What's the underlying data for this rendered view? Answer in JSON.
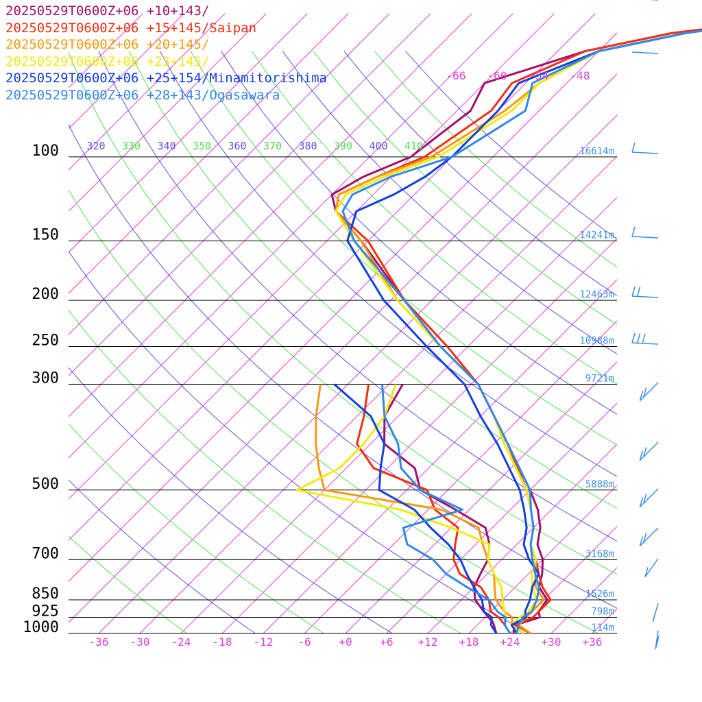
{
  "chart_data": {
    "type": "line",
    "title": "",
    "xlabel": "",
    "ylabel": "",
    "xlim": [
      -40,
      40
    ],
    "ylim": [
      1000,
      100
    ],
    "y_scale": "log",
    "pressure_levels": [
      {
        "p": 100,
        "label": "100",
        "height": "16614m"
      },
      {
        "p": 150,
        "label": "150",
        "height": "14241m"
      },
      {
        "p": 200,
        "label": "200",
        "height": "12463m"
      },
      {
        "p": 250,
        "label": "250",
        "height": "10988m"
      },
      {
        "p": 300,
        "label": "300",
        "height": "9721m"
      },
      {
        "p": 500,
        "label": "500",
        "height": "5888m"
      },
      {
        "p": 700,
        "label": "700",
        "height": "3168m"
      },
      {
        "p": 850,
        "label": "850",
        "height": "1526m"
      },
      {
        "p": 925,
        "label": "925",
        "height": "798m"
      },
      {
        "p": 1000,
        "label": "1000",
        "height": "114m"
      }
    ],
    "x_ticks": [
      "-36",
      "-30",
      "-24",
      "-18",
      "-12",
      "-6",
      "+0",
      "+6",
      "+12",
      "+18",
      "+24",
      "+30",
      "+36"
    ],
    "upper_temp_labels": [
      "-66",
      "-60",
      "-54",
      "-48"
    ],
    "theta_labels": [
      "320",
      "330",
      "340",
      "350",
      "360",
      "370",
      "380",
      "390",
      "400",
      "410"
    ],
    "series": [
      {
        "name": "20250529T0600Z+06 +10+143/",
        "color": "#a0106a",
        "temp": [
          [
            1000,
            24.5
          ],
          [
            960,
            23.5
          ],
          [
            925,
            26
          ],
          [
            900,
            25
          ],
          [
            850,
            24.5
          ],
          [
            800,
            21.5
          ],
          [
            750,
            20
          ],
          [
            700,
            18
          ],
          [
            650,
            15
          ],
          [
            600,
            13
          ],
          [
            550,
            10
          ],
          [
            500,
            6
          ],
          [
            400,
            -4
          ],
          [
            350,
            -10
          ],
          [
            300,
            -17
          ],
          [
            250,
            -28
          ],
          [
            200,
            -40
          ],
          [
            150,
            -55
          ],
          [
            130,
            -63
          ],
          [
            120,
            -66
          ],
          [
            110,
            -64
          ],
          [
            100,
            -60
          ],
          [
            80,
            -58
          ],
          [
            70,
            -60
          ],
          [
            60,
            -50
          ],
          [
            55,
            -40
          ],
          [
            52,
            -28
          ]
        ],
        "dew": [
          [
            1000,
            22
          ],
          [
            950,
            20
          ],
          [
            900,
            17
          ],
          [
            850,
            14
          ],
          [
            800,
            12
          ],
          [
            750,
            11
          ],
          [
            700,
            10
          ],
          [
            650,
            8
          ],
          [
            600,
            5
          ],
          [
            550,
            -2
          ],
          [
            500,
            -10
          ],
          [
            450,
            -14
          ],
          [
            400,
            -22
          ],
          [
            350,
            -26
          ],
          [
            300,
            -28
          ]
        ]
      },
      {
        "name": "20250529T0600Z+06 +15+145/Saipan",
        "color": "#f03010",
        "temp": [
          [
            1000,
            27
          ],
          [
            960,
            23.5
          ],
          [
            925,
            25
          ],
          [
            900,
            25
          ],
          [
            850,
            25
          ],
          [
            800,
            22
          ],
          [
            750,
            19.5
          ],
          [
            700,
            17
          ],
          [
            650,
            14
          ],
          [
            600,
            12
          ],
          [
            550,
            9
          ],
          [
            500,
            5.5
          ],
          [
            400,
            -4
          ],
          [
            350,
            -10
          ],
          [
            300,
            -17
          ],
          [
            250,
            -27
          ],
          [
            200,
            -40
          ],
          [
            150,
            -54
          ],
          [
            130,
            -63
          ],
          [
            120,
            -65
          ],
          [
            110,
            -62
          ],
          [
            100,
            -58
          ],
          [
            80,
            -55
          ],
          [
            70,
            -56
          ],
          [
            60,
            -50
          ],
          [
            55,
            -40
          ],
          [
            52,
            -28
          ]
        ],
        "dew": [
          [
            1000,
            24
          ],
          [
            960,
            22
          ],
          [
            925,
            20
          ],
          [
            900,
            18
          ],
          [
            850,
            16
          ],
          [
            800,
            13
          ],
          [
            750,
            8
          ],
          [
            700,
            5
          ],
          [
            650,
            3
          ],
          [
            600,
            1
          ],
          [
            550,
            -5
          ],
          [
            500,
            -9
          ],
          [
            450,
            -20
          ],
          [
            400,
            -26
          ],
          [
            350,
            -29
          ],
          [
            300,
            -33
          ]
        ]
      },
      {
        "name": "20250529T0600Z+06 +20+145/",
        "color": "#f59a10",
        "temp": [
          [
            1000,
            27
          ],
          [
            960,
            24
          ],
          [
            925,
            24
          ],
          [
            900,
            24
          ],
          [
            850,
            24
          ],
          [
            800,
            21
          ],
          [
            750,
            19
          ],
          [
            700,
            17
          ],
          [
            650,
            14
          ],
          [
            600,
            12
          ],
          [
            550,
            9
          ],
          [
            500,
            5.5
          ],
          [
            400,
            -4.5
          ],
          [
            350,
            -10
          ],
          [
            300,
            -17
          ],
          [
            250,
            -28
          ],
          [
            200,
            -41
          ],
          [
            150,
            -55
          ],
          [
            130,
            -63
          ],
          [
            120,
            -65
          ],
          [
            110,
            -62
          ],
          [
            100,
            -57
          ],
          [
            80,
            -53
          ],
          [
            70,
            -52
          ],
          [
            60,
            -48
          ],
          [
            55,
            -38
          ],
          [
            52,
            -28
          ]
        ],
        "dew": [
          [
            1000,
            26
          ],
          [
            960,
            23
          ],
          [
            925,
            22
          ],
          [
            900,
            20
          ],
          [
            850,
            17
          ],
          [
            800,
            15
          ],
          [
            750,
            13
          ],
          [
            700,
            10
          ],
          [
            650,
            7
          ],
          [
            600,
            4
          ],
          [
            550,
            -4
          ],
          [
            500,
            -24
          ],
          [
            450,
            -28
          ],
          [
            400,
            -32
          ],
          [
            350,
            -36
          ],
          [
            300,
            -40
          ]
        ]
      },
      {
        "name": "20250529T0600Z+06 +23+145/",
        "color": "#f2ea10",
        "temp": [
          [
            1000,
            26
          ],
          [
            960,
            23
          ],
          [
            925,
            23
          ],
          [
            900,
            23.5
          ],
          [
            850,
            23
          ],
          [
            800,
            20.5
          ],
          [
            750,
            18.5
          ],
          [
            700,
            17
          ],
          [
            650,
            14
          ],
          [
            600,
            12
          ],
          [
            550,
            9
          ],
          [
            500,
            5.5
          ],
          [
            400,
            -4.5
          ],
          [
            350,
            -10
          ],
          [
            300,
            -17
          ],
          [
            250,
            -28
          ],
          [
            200,
            -41
          ],
          [
            150,
            -56
          ],
          [
            130,
            -63
          ],
          [
            120,
            -64
          ],
          [
            110,
            -61
          ],
          [
            100,
            -56
          ],
          [
            80,
            -52
          ],
          [
            70,
            -52
          ],
          [
            60,
            -48
          ],
          [
            55,
            -38
          ],
          [
            52,
            -28
          ]
        ],
        "dew": [
          [
            1000,
            24
          ],
          [
            960,
            22
          ],
          [
            925,
            21
          ],
          [
            900,
            20
          ],
          [
            850,
            18
          ],
          [
            800,
            16
          ],
          [
            750,
            13
          ],
          [
            700,
            10
          ],
          [
            650,
            8
          ],
          [
            600,
            0
          ],
          [
            550,
            -10
          ],
          [
            500,
            -28
          ],
          [
            450,
            -25
          ],
          [
            400,
            -25
          ],
          [
            350,
            -26
          ],
          [
            300,
            -29
          ]
        ]
      },
      {
        "name": "20250529T0600Z+06 +25+154/Minamitorishima",
        "color": "#1040e0",
        "temp": [
          [
            1000,
            25
          ],
          [
            960,
            23
          ],
          [
            925,
            24
          ],
          [
            900,
            23
          ],
          [
            850,
            22
          ],
          [
            800,
            20.5
          ],
          [
            750,
            19.5
          ],
          [
            700,
            16
          ],
          [
            650,
            13
          ],
          [
            600,
            11
          ],
          [
            550,
            8
          ],
          [
            500,
            4.5
          ],
          [
            400,
            -5.5
          ],
          [
            350,
            -12
          ],
          [
            300,
            -19
          ],
          [
            250,
            -30
          ],
          [
            200,
            -43
          ],
          [
            150,
            -57
          ],
          [
            130,
            -60
          ],
          [
            120,
            -57
          ],
          [
            110,
            -55
          ],
          [
            100,
            -54
          ],
          [
            80,
            -54
          ],
          [
            70,
            -55
          ],
          [
            60,
            -48
          ],
          [
            55,
            -38
          ],
          [
            52,
            -28
          ]
        ],
        "dew": [
          [
            1000,
            22
          ],
          [
            960,
            20
          ],
          [
            925,
            19
          ],
          [
            900,
            17
          ],
          [
            850,
            15
          ],
          [
            800,
            12
          ],
          [
            750,
            9
          ],
          [
            700,
            6
          ],
          [
            650,
            2
          ],
          [
            600,
            -3
          ],
          [
            550,
            -8
          ],
          [
            500,
            -16
          ],
          [
            450,
            -19
          ],
          [
            400,
            -22
          ],
          [
            350,
            -28
          ],
          [
            300,
            -38
          ]
        ]
      },
      {
        "name": "20250529T0600Z+06 +28+143/Ogasawara",
        "color": "#3088e8",
        "temp": [
          [
            1000,
            25
          ],
          [
            960,
            24
          ],
          [
            925,
            23.5
          ],
          [
            900,
            24
          ],
          [
            850,
            23
          ],
          [
            800,
            21.5
          ],
          [
            750,
            19
          ],
          [
            700,
            16.5
          ],
          [
            650,
            14
          ],
          [
            600,
            12
          ],
          [
            550,
            9
          ],
          [
            500,
            6
          ],
          [
            400,
            -4
          ],
          [
            350,
            -10
          ],
          [
            300,
            -17
          ],
          [
            250,
            -28
          ],
          [
            200,
            -40
          ],
          [
            150,
            -56
          ],
          [
            130,
            -62
          ],
          [
            120,
            -63
          ],
          [
            110,
            -60
          ],
          [
            100,
            -54
          ],
          [
            80,
            -50
          ],
          [
            70,
            -53
          ],
          [
            60,
            -48
          ],
          [
            55,
            -38
          ],
          [
            52,
            -28
          ]
        ],
        "dew": [
          [
            1000,
            24
          ],
          [
            960,
            22
          ],
          [
            925,
            21
          ],
          [
            900,
            19
          ],
          [
            850,
            16
          ],
          [
            800,
            11
          ],
          [
            750,
            6
          ],
          [
            700,
            2
          ],
          [
            650,
            -4
          ],
          [
            600,
            -7
          ],
          [
            550,
            -1
          ],
          [
            500,
            -10
          ],
          [
            450,
            -16
          ],
          [
            400,
            -20
          ],
          [
            350,
            -26
          ],
          [
            300,
            -31
          ]
        ]
      }
    ]
  }
}
